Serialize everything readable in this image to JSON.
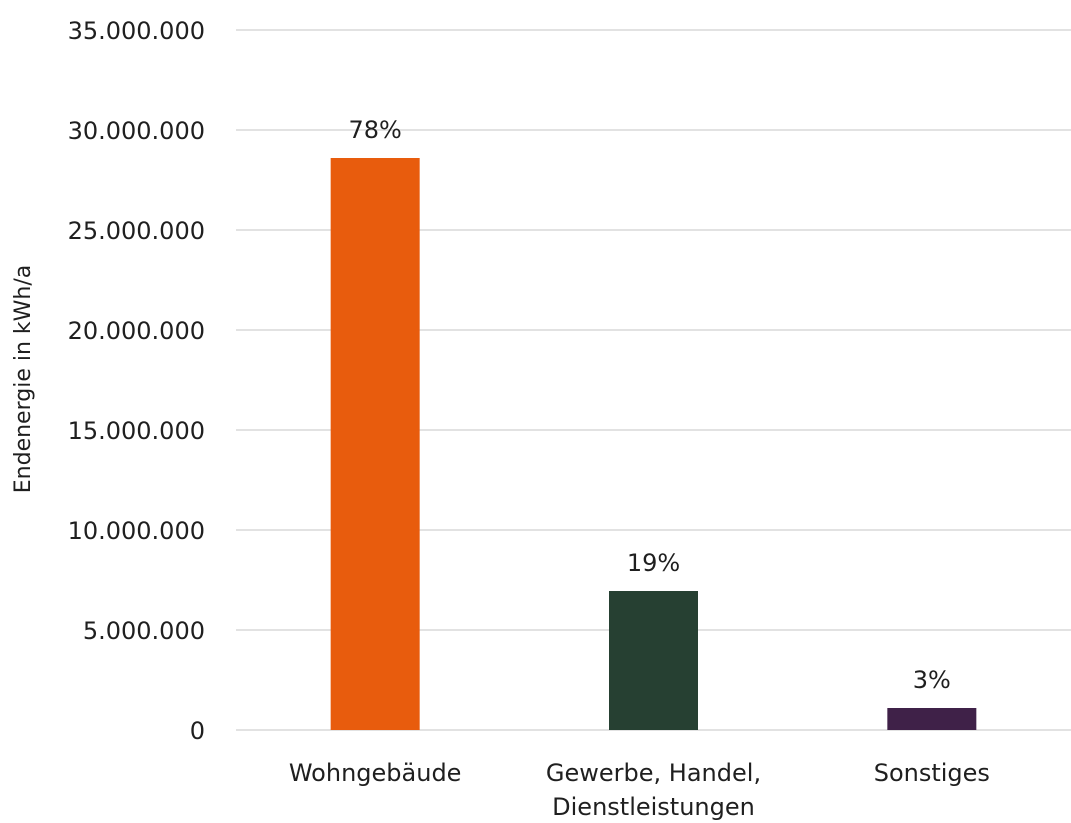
{
  "chart_data": {
    "type": "bar",
    "title": "",
    "xlabel": "",
    "ylabel": "Endenergie in kWh/a",
    "ylim": [
      0,
      35000000
    ],
    "yticks": [
      0,
      5000000,
      10000000,
      15000000,
      20000000,
      25000000,
      30000000,
      35000000
    ],
    "ytick_labels": [
      "0",
      "5.000.000",
      "10.000.000",
      "15.000.000",
      "20.000.000",
      "25.000.000",
      "30.000.000",
      "35.000.000"
    ],
    "grid": true,
    "legend": "none",
    "categories": [
      [
        "Wohngebäude"
      ],
      [
        "Gewerbe, Handel,",
        "Dienstleistungen"
      ],
      [
        "Sonstiges"
      ]
    ],
    "values": [
      28600000,
      6950000,
      1100000
    ],
    "data_labels": [
      "78%",
      "19%",
      "3%"
    ],
    "colors": [
      "#E85C0D",
      "#264032",
      "#3F2148"
    ]
  }
}
